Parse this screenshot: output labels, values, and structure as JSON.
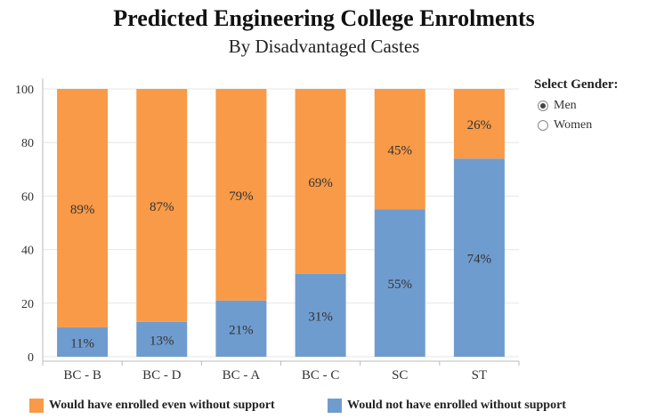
{
  "title": "Predicted Engineering College Enrolments",
  "subtitle": "By Disadvantaged Castes",
  "gender_filter": {
    "label": "Select Gender:",
    "options": [
      {
        "label": "Men",
        "selected": true
      },
      {
        "label": "Women",
        "selected": false
      }
    ]
  },
  "colors": {
    "even_without_support": "#f89a47",
    "not_without_support": "#6f9ccf",
    "gridline": "#e6e6e6",
    "axis": "#bbbbbb"
  },
  "chart_data": {
    "type": "bar",
    "stacked": true,
    "categories": [
      "BC - B",
      "BC - D",
      "BC - A",
      "BC - C",
      "SC",
      "ST"
    ],
    "series": [
      {
        "name": "Would not have enrolled without support",
        "values": [
          11,
          13,
          21,
          31,
          55,
          74
        ],
        "labels": [
          "11%",
          "13%",
          "21%",
          "31%",
          "55%",
          "74%"
        ]
      },
      {
        "name": "Would have enrolled even without support",
        "values": [
          89,
          87,
          79,
          69,
          45,
          26
        ],
        "labels": [
          "89%",
          "87%",
          "79%",
          "69%",
          "45%",
          "26%"
        ]
      }
    ],
    "ylim": [
      0,
      100
    ],
    "yticks": [
      0,
      20,
      40,
      60,
      80,
      100
    ],
    "grid": true,
    "legend": "bottom"
  }
}
